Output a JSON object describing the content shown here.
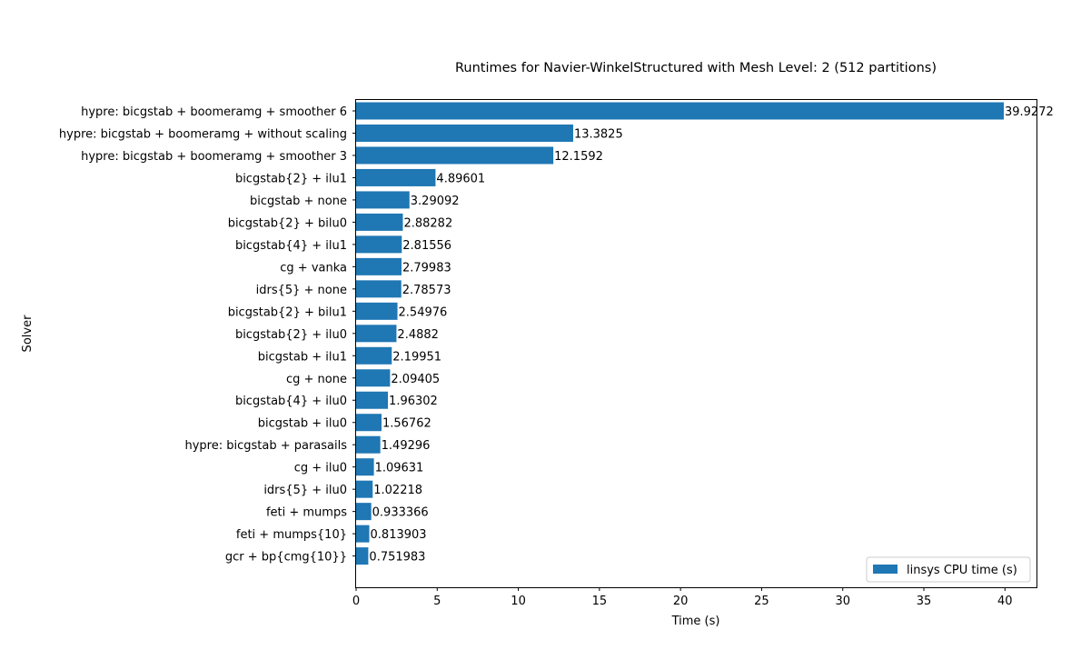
{
  "chart_data": {
    "type": "bar",
    "orientation": "horizontal",
    "title": "Runtimes for Navier-WinkelStructured with Mesh Level: 2 (512 partitions)",
    "xlabel": "Time (s)",
    "ylabel": "Solver",
    "xlim": [
      0,
      42
    ],
    "xticks": [
      0,
      5,
      10,
      15,
      20,
      25,
      30,
      35,
      40
    ],
    "categories": [
      "hypre: bicgstab + boomeramg + smoother 6",
      "hypre: bicgstab + boomeramg + without scaling",
      "hypre: bicgstab + boomeramg + smoother 3",
      "bicgstab{2} + ilu1",
      "bicgstab + none",
      "bicgstab{2} + bilu0",
      "bicgstab{4} + ilu1",
      "cg + vanka",
      "idrs{5} + none",
      "bicgstab{2} + bilu1",
      "bicgstab{2} + ilu0",
      "bicgstab + ilu1",
      "cg + none",
      "bicgstab{4} + ilu0",
      "bicgstab + ilu0",
      "hypre: bicgstab + parasails",
      "cg + ilu0",
      "idrs{5} + ilu0",
      "feti + mumps",
      "feti + mumps{10}",
      "gcr + bp{cmg{10}}"
    ],
    "series": [
      {
        "name": "linsys CPU time (s)",
        "color": "#1f77b4",
        "values": [
          39.9272,
          13.3825,
          12.1592,
          4.89601,
          3.29092,
          2.88282,
          2.81556,
          2.79983,
          2.78573,
          2.54976,
          2.4882,
          2.19951,
          2.09405,
          1.96302,
          1.56762,
          1.49296,
          1.09631,
          1.02218,
          0.933366,
          0.813903,
          0.751983
        ],
        "labels": [
          "39.9272",
          "13.3825",
          "12.1592",
          "4.89601",
          "3.29092",
          "2.88282",
          "2.81556",
          "2.79983",
          "2.78573",
          "2.54976",
          "2.4882",
          "2.19951",
          "2.09405",
          "1.96302",
          "1.56762",
          "1.49296",
          "1.09631",
          "1.02218",
          "0.933366",
          "0.813903",
          "0.751983"
        ]
      }
    ],
    "legend_position": "lower-right",
    "grid": false
  }
}
